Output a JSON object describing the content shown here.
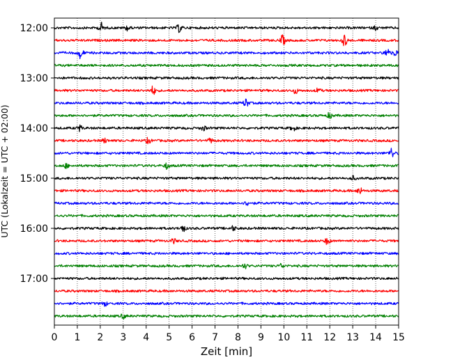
{
  "chart_data": {
    "type": "line",
    "title": "",
    "xlabel": "Zeit  [min]",
    "ylabel": "UTC (Lokalzeit = UTC + 02:00)",
    "xlim": [
      0,
      15
    ],
    "x_ticks": [
      0,
      1,
      2,
      3,
      4,
      5,
      6,
      7,
      8,
      9,
      10,
      11,
      12,
      13,
      14,
      15
    ],
    "x_grid": true,
    "y_grid": false,
    "legend": "none",
    "y_tick_labels": [
      "12:00",
      "13:00",
      "14:00",
      "15:00",
      "16:00",
      "17:00"
    ],
    "trace_interval_minutes": 15,
    "colors": [
      "#000000",
      "#ff0000",
      "#0000ff",
      "#008000"
    ],
    "traces": [
      {
        "start": "12:00",
        "color": "#000000",
        "events": [
          {
            "t": 2.05,
            "amp": 7
          },
          {
            "t": 3.2,
            "amp": 4
          },
          {
            "t": 5.45,
            "amp": 6
          },
          {
            "t": 14.0,
            "amp": 2.5
          }
        ]
      },
      {
        "start": "12:15",
        "color": "#ff0000",
        "events": [
          {
            "t": 9.95,
            "amp": 7
          },
          {
            "t": 12.65,
            "amp": 8
          }
        ]
      },
      {
        "start": "12:30",
        "color": "#0000ff",
        "events": [
          {
            "t": 1.15,
            "amp": 8
          },
          {
            "t": 14.5,
            "amp": 7
          },
          {
            "t": 14.85,
            "amp": 4
          }
        ]
      },
      {
        "start": "12:45",
        "color": "#008000",
        "events": []
      },
      {
        "start": "13:00",
        "color": "#000000",
        "events": []
      },
      {
        "start": "13:15",
        "color": "#ff0000",
        "events": [
          {
            "t": 4.3,
            "amp": 6
          },
          {
            "t": 10.5,
            "amp": 4
          },
          {
            "t": 11.5,
            "amp": 3
          }
        ]
      },
      {
        "start": "13:30",
        "color": "#0000ff",
        "events": [
          {
            "t": 8.35,
            "amp": 6
          }
        ]
      },
      {
        "start": "13:45",
        "color": "#008000",
        "events": [
          {
            "t": 12.0,
            "amp": 4
          }
        ]
      },
      {
        "start": "14:00",
        "color": "#000000",
        "events": [
          {
            "t": 1.1,
            "amp": 4
          },
          {
            "t": 6.5,
            "amp": 3
          },
          {
            "t": 10.4,
            "amp": 4
          }
        ]
      },
      {
        "start": "14:15",
        "color": "#ff0000",
        "events": [
          {
            "t": 2.2,
            "amp": 3
          },
          {
            "t": 4.1,
            "amp": 4
          },
          {
            "t": 6.8,
            "amp": 3
          }
        ]
      },
      {
        "start": "14:30",
        "color": "#0000ff",
        "events": [
          {
            "t": 14.7,
            "amp": 7
          }
        ]
      },
      {
        "start": "14:45",
        "color": "#008000",
        "events": [
          {
            "t": 0.5,
            "amp": 3
          },
          {
            "t": 4.9,
            "amp": 4
          }
        ]
      },
      {
        "start": "15:00",
        "color": "#000000",
        "events": [
          {
            "t": 13.0,
            "amp": 3
          }
        ]
      },
      {
        "start": "15:15",
        "color": "#ff0000",
        "events": [
          {
            "t": 13.3,
            "amp": 5
          }
        ]
      },
      {
        "start": "15:30",
        "color": "#0000ff",
        "events": [
          {
            "t": 8.4,
            "amp": 3
          }
        ]
      },
      {
        "start": "15:45",
        "color": "#008000",
        "events": []
      },
      {
        "start": "16:00",
        "color": "#000000",
        "events": [
          {
            "t": 5.6,
            "amp": 5
          },
          {
            "t": 7.8,
            "amp": 3
          }
        ]
      },
      {
        "start": "16:15",
        "color": "#ff0000",
        "events": [
          {
            "t": 5.2,
            "amp": 3
          },
          {
            "t": 11.9,
            "amp": 5
          }
        ]
      },
      {
        "start": "16:30",
        "color": "#0000ff",
        "events": []
      },
      {
        "start": "16:45",
        "color": "#008000",
        "events": [
          {
            "t": 8.3,
            "amp": 3
          },
          {
            "t": 9.9,
            "amp": 3
          }
        ]
      },
      {
        "start": "17:00",
        "color": "#000000",
        "events": []
      },
      {
        "start": "17:15",
        "color": "#ff0000",
        "events": []
      },
      {
        "start": "17:30",
        "color": "#0000ff",
        "events": [
          {
            "t": 2.2,
            "amp": 3
          }
        ]
      },
      {
        "start": "17:45",
        "color": "#008000",
        "events": [
          {
            "t": 3.0,
            "amp": 3
          }
        ]
      }
    ]
  }
}
